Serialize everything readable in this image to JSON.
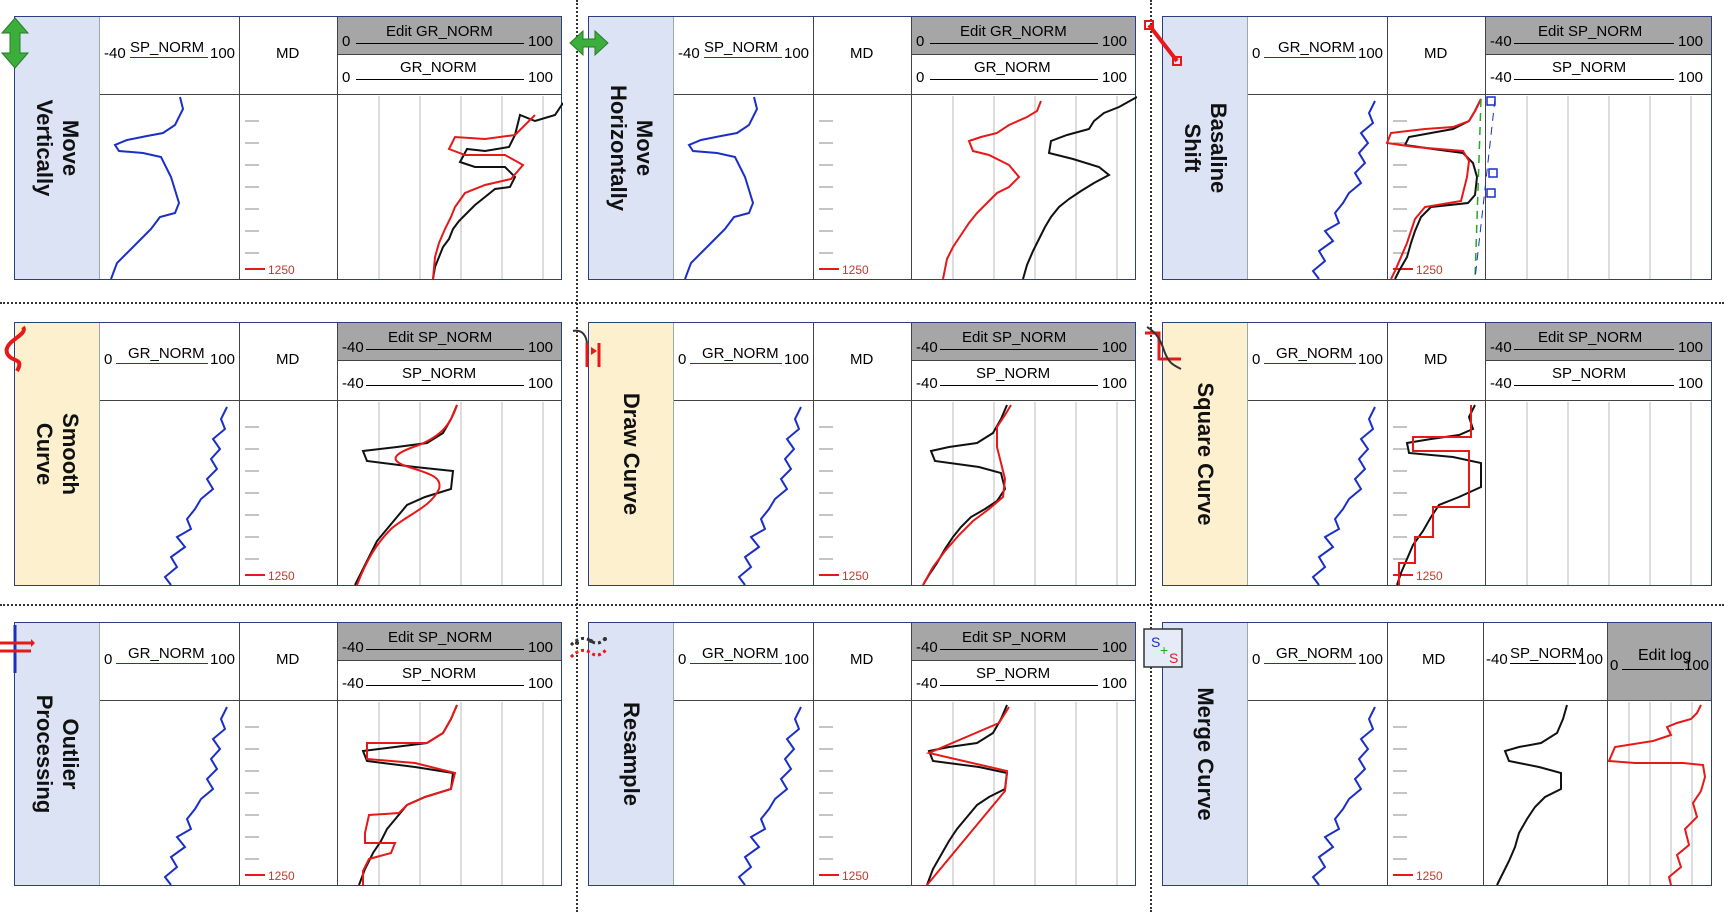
{
  "panels": [
    {
      "id": "move-vertically",
      "label": "Move\nVertically",
      "label_bg": "#dbe3f5",
      "icon": "double-vertical-arrow-icon",
      "track1": {
        "name": "SP_NORM",
        "min": "-40",
        "max": "100"
      },
      "md": {
        "label": "MD",
        "depth": "1250"
      },
      "edit": {
        "title": "Edit GR_NORM",
        "min": "0",
        "max": "100",
        "curve": "GR_NORM",
        "cmin": "0",
        "cmax": "100"
      }
    },
    {
      "id": "move-horizontally",
      "label": "Move\nHorizontally",
      "label_bg": "#dbe3f5",
      "icon": "double-horizontal-arrow-icon",
      "track1": {
        "name": "SP_NORM",
        "min": "-40",
        "max": "100"
      },
      "md": {
        "label": "MD",
        "depth": "1250"
      },
      "edit": {
        "title": "Edit GR_NORM",
        "min": "0",
        "max": "100",
        "curve": "GR_NORM",
        "cmin": "0",
        "cmax": "100"
      }
    },
    {
      "id": "baseline-shift",
      "label": "Basaline\nShift",
      "label_bg": "#dbe3f5",
      "icon": "line-segment-icon",
      "track1": {
        "name": "GR_NORM",
        "min": "0",
        "max": "100"
      },
      "md": {
        "label": "MD",
        "depth": "1250"
      },
      "edit": {
        "title": "Edit SP_NORM",
        "min": "-40",
        "max": "100",
        "curve": "SP_NORM",
        "cmin": "-40",
        "cmax": "100"
      }
    },
    {
      "id": "smooth-curve",
      "label": "Smooth\nCurve",
      "label_bg": "#fdf0cf",
      "icon": "s-curve-icon",
      "track1": {
        "name": "GR_NORM",
        "min": "0",
        "max": "100"
      },
      "md": {
        "label": "MD",
        "depth": "1250"
      },
      "edit": {
        "title": "Edit SP_NORM",
        "min": "-40",
        "max": "100",
        "curve": "SP_NORM",
        "cmin": "-40",
        "cmax": "100"
      }
    },
    {
      "id": "draw-curve",
      "label": "Draw Curve",
      "label_bg": "#fdf0cf",
      "icon": "draw-curve-icon",
      "track1": {
        "name": "GR_NORM",
        "min": "0",
        "max": "100"
      },
      "md": {
        "label": "MD",
        "depth": "1250"
      },
      "edit": {
        "title": "Edit SP_NORM",
        "min": "-40",
        "max": "100",
        "curve": "SP_NORM",
        "cmin": "-40",
        "cmax": "100"
      }
    },
    {
      "id": "square-curve",
      "label": "Square Curve",
      "label_bg": "#fdf0cf",
      "icon": "square-curve-icon",
      "track1": {
        "name": "GR_NORM",
        "min": "0",
        "max": "100"
      },
      "md": {
        "label": "MD",
        "depth": "1250"
      },
      "edit": {
        "title": "Edit SP_NORM",
        "min": "-40",
        "max": "100",
        "curve": "SP_NORM",
        "cmin": "-40",
        "cmax": "100"
      }
    },
    {
      "id": "outlier-processing",
      "label": "Outlier\nProcessing",
      "label_bg": "#dbe3f5",
      "icon": "outlier-cross-icon",
      "track1": {
        "name": "GR_NORM",
        "min": "0",
        "max": "100"
      },
      "md": {
        "label": "MD",
        "depth": "1250"
      },
      "edit": {
        "title": "Edit SP_NORM",
        "min": "-40",
        "max": "100",
        "curve": "SP_NORM",
        "cmin": "-40",
        "cmax": "100"
      }
    },
    {
      "id": "resample",
      "label": "Resample",
      "label_bg": "#dbe3f5",
      "icon": "resample-icon",
      "track1": {
        "name": "GR_NORM",
        "min": "0",
        "max": "100"
      },
      "md": {
        "label": "MD",
        "depth": "1250"
      },
      "edit": {
        "title": "Edit SP_NORM",
        "min": "-40",
        "max": "100",
        "curve": "SP_NORM",
        "cmin": "-40",
        "cmax": "100"
      }
    },
    {
      "id": "merge-curve",
      "label": "Merge Curve",
      "label_bg": "#dbe3f5",
      "icon": "merge-s-icon",
      "track1": {
        "name": "GR_NORM",
        "min": "0",
        "max": "100"
      },
      "md": {
        "label": "MD",
        "depth": "1250"
      },
      "sp": {
        "name": "SP_NORM",
        "min": "-40",
        "max": "100"
      },
      "edit": {
        "title": "Edit log",
        "min": "0",
        "max": "100"
      }
    }
  ],
  "colors": {
    "blue": "#1a2fc7",
    "red": "#e81818",
    "black": "#111111",
    "green": "#22aa22"
  }
}
